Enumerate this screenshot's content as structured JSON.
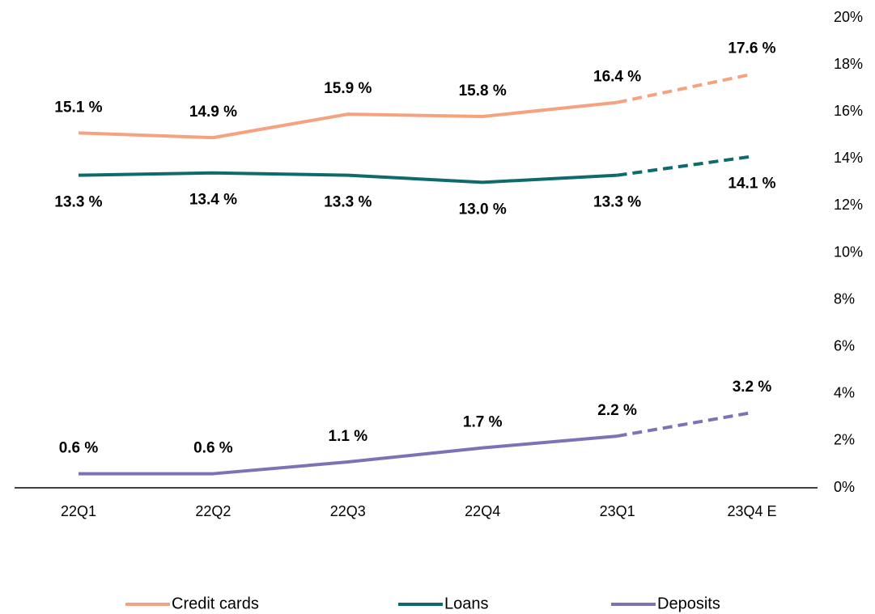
{
  "chart_data": {
    "type": "line",
    "categories": [
      "22Q1",
      "22Q2",
      "22Q3",
      "22Q4",
      "23Q1",
      "23Q4 E"
    ],
    "series": [
      {
        "name": "Credit cards",
        "color": "#f5a27f",
        "label_position": "above",
        "values": [
          15.1,
          14.9,
          15.9,
          15.8,
          16.4,
          17.6
        ],
        "value_labels": [
          "15.1 %",
          "14.9 %",
          "15.9 %",
          "15.8 %",
          "16.4 %",
          "17.6 %"
        ]
      },
      {
        "name": "Loans",
        "color": "#0f6b6b",
        "label_position": "below",
        "values": [
          13.3,
          13.4,
          13.3,
          13.0,
          13.3,
          14.1
        ],
        "value_labels": [
          "13.3 %",
          "13.4 %",
          "13.3 %",
          "13.0 %",
          "13.3 %",
          "14.1 %"
        ]
      },
      {
        "name": "Deposits",
        "color": "#7b73b6",
        "label_position": "above",
        "values": [
          0.6,
          0.6,
          1.1,
          1.7,
          2.2,
          3.2
        ],
        "value_labels": [
          "0.6 %",
          "0.6 %",
          "1.1 %",
          "1.7 %",
          "2.2 %",
          "3.2 %"
        ]
      }
    ],
    "dashed_last_segment": true,
    "ylim": [
      0,
      20
    ],
    "yticks": [
      {
        "value": 0,
        "label": "0%"
      },
      {
        "value": 2,
        "label": "2%"
      },
      {
        "value": 4,
        "label": "4%"
      },
      {
        "value": 6,
        "label": "6%"
      },
      {
        "value": 8,
        "label": "8%"
      },
      {
        "value": 10,
        "label": "10%"
      },
      {
        "value": 12,
        "label": "12%"
      },
      {
        "value": 14,
        "label": "14%"
      },
      {
        "value": 16,
        "label": "16%"
      },
      {
        "value": 18,
        "label": "18%"
      },
      {
        "value": 20,
        "label": "20%"
      }
    ],
    "y_axis_side": "right",
    "grid": false,
    "legend": "bottom"
  }
}
